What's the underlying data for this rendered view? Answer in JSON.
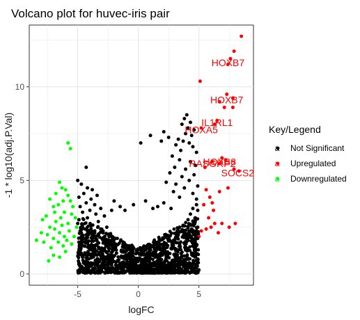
{
  "chart_data": {
    "type": "scatter",
    "title": "Volcano plot for huvec-iris pair",
    "xlabel": "logFC",
    "ylabel": "-1 * log10(adj.P.Val)",
    "xlim": [
      -9,
      9.5
    ],
    "ylim": [
      -0.6,
      13.3
    ],
    "x_ticks": [
      -5,
      0,
      5
    ],
    "y_ticks": [
      0,
      5,
      10
    ],
    "grid": true,
    "legend": {
      "title": "Key/Legend",
      "position": "right",
      "glyph": "a",
      "entries": [
        {
          "label": "Not Significant",
          "color": "#000000"
        },
        {
          "label": "Upregulated",
          "color": "#ff0000"
        },
        {
          "label": "Downregulated",
          "color": "#00ff00"
        }
      ]
    },
    "series": [
      {
        "name": "Upregulated",
        "color": "#ff0000",
        "points": [
          [
            8.5,
            12.7
          ],
          [
            7.9,
            11.9
          ],
          [
            7.6,
            11.5
          ],
          [
            7.4,
            11.2
          ],
          [
            5.1,
            10.3
          ],
          [
            7.3,
            9.6
          ],
          [
            7.8,
            9.4
          ],
          [
            6.7,
            9.2
          ],
          [
            7.1,
            8.9
          ],
          [
            7.8,
            8.9
          ],
          [
            6.5,
            8.2
          ],
          [
            6.3,
            8.0
          ],
          [
            5.2,
            7.8
          ],
          [
            6.9,
            6.2
          ],
          [
            7.2,
            6.1
          ],
          [
            6.1,
            6.0
          ],
          [
            6.7,
            5.9
          ],
          [
            5.5,
            5.7
          ],
          [
            7.9,
            5.6
          ],
          [
            8.3,
            5.5
          ],
          [
            5.6,
            4.5
          ],
          [
            7.4,
            4.6
          ],
          [
            6.7,
            4.4
          ],
          [
            5.9,
            4.1
          ],
          [
            6.1,
            3.8
          ],
          [
            5.4,
            3.7
          ],
          [
            6.2,
            3.4
          ],
          [
            5.8,
            3.0
          ],
          [
            6.9,
            2.7
          ],
          [
            6.3,
            2.7
          ],
          [
            6.0,
            2.5
          ],
          [
            5.6,
            2.4
          ],
          [
            8.0,
            2.7
          ],
          [
            7.5,
            2.5
          ],
          [
            5.2,
            2.3
          ],
          [
            6.6,
            2.2
          ],
          [
            5.0,
            2.0
          ]
        ]
      },
      {
        "name": "Downregulated",
        "color": "#00ff00",
        "points": [
          [
            -5.8,
            7.0
          ],
          [
            -5.6,
            6.7
          ],
          [
            -6.5,
            4.9
          ],
          [
            -6.3,
            4.6
          ],
          [
            -6.0,
            4.5
          ],
          [
            -6.8,
            4.3
          ],
          [
            -5.8,
            4.2
          ],
          [
            -7.3,
            4.0
          ],
          [
            -6.2,
            3.9
          ],
          [
            -5.6,
            3.9
          ],
          [
            -6.6,
            3.7
          ],
          [
            -7.0,
            3.6
          ],
          [
            -5.4,
            3.6
          ],
          [
            -6.9,
            3.3
          ],
          [
            -6.1,
            3.3
          ],
          [
            -5.5,
            3.2
          ],
          [
            -7.6,
            3.1
          ],
          [
            -6.4,
            3.0
          ],
          [
            -5.2,
            3.0
          ],
          [
            -7.9,
            2.9
          ],
          [
            -6.8,
            2.8
          ],
          [
            -5.8,
            2.7
          ],
          [
            -6.3,
            2.6
          ],
          [
            -7.3,
            2.5
          ],
          [
            -5.1,
            2.5
          ],
          [
            -6.9,
            2.4
          ],
          [
            -5.7,
            2.3
          ],
          [
            -8.0,
            2.2
          ],
          [
            -6.5,
            2.2
          ],
          [
            -7.5,
            2.1
          ],
          [
            -6.1,
            2.0
          ],
          [
            -5.3,
            2.0
          ],
          [
            -7.0,
            1.9
          ],
          [
            -5.9,
            1.8
          ],
          [
            -8.4,
            1.8
          ],
          [
            -6.6,
            1.7
          ],
          [
            -7.8,
            1.7
          ],
          [
            -5.5,
            1.6
          ],
          [
            -6.2,
            1.5
          ],
          [
            -7.2,
            1.4
          ],
          [
            -6.0,
            1.2
          ],
          [
            -7.0,
            1.0
          ],
          [
            -6.5,
            0.9
          ],
          [
            -7.4,
            0.7
          ]
        ]
      },
      {
        "name": "Not Significant",
        "color": "#000000",
        "points": [
          [
            4.0,
            8.5
          ],
          [
            3.8,
            8.3
          ],
          [
            4.3,
            8.1
          ],
          [
            3.6,
            8.0
          ],
          [
            4.1,
            7.8
          ],
          [
            4.6,
            7.7
          ],
          [
            3.9,
            7.5
          ],
          [
            4.4,
            7.4
          ],
          [
            3.3,
            7.2
          ],
          [
            3.7,
            7.1
          ],
          [
            4.2,
            7.0
          ],
          [
            2.1,
            7.6
          ],
          [
            2.5,
            7.3
          ],
          [
            1.9,
            7.1
          ],
          [
            3.1,
            6.9
          ],
          [
            4.5,
            6.8
          ],
          [
            3.5,
            6.6
          ],
          [
            4.8,
            6.5
          ],
          [
            2.8,
            6.3
          ],
          [
            3.4,
            6.1
          ],
          [
            4.3,
            6.0
          ],
          [
            4.7,
            5.8
          ],
          [
            3.0,
            5.7
          ],
          [
            3.9,
            5.6
          ],
          [
            2.6,
            5.4
          ],
          [
            4.6,
            5.3
          ],
          [
            3.6,
            5.2
          ],
          [
            4.2,
            5.0
          ],
          [
            2.3,
            4.9
          ],
          [
            3.1,
            4.8
          ],
          [
            4.9,
            4.7
          ],
          [
            3.8,
            4.6
          ],
          [
            2.9,
            4.4
          ],
          [
            4.5,
            4.3
          ],
          [
            3.4,
            4.1
          ],
          [
            4.8,
            4.0
          ],
          [
            1.0,
            7.4
          ],
          [
            0.2,
            7.0
          ],
          [
            -4.3,
            5.7
          ],
          [
            -5.0,
            5.0
          ],
          [
            -4.7,
            4.8
          ],
          [
            -4.2,
            4.6
          ],
          [
            -3.8,
            4.5
          ],
          [
            -4.5,
            4.3
          ],
          [
            -3.4,
            4.2
          ],
          [
            -4.9,
            4.1
          ],
          [
            -3.9,
            4.0
          ],
          [
            -4.3,
            3.8
          ],
          [
            -3.6,
            3.7
          ],
          [
            -4.8,
            3.6
          ],
          [
            -3.1,
            3.5
          ],
          [
            -4.0,
            3.4
          ],
          [
            -4.6,
            3.3
          ],
          [
            -3.5,
            3.2
          ],
          [
            -2.8,
            3.1
          ],
          [
            -4.2,
            3.0
          ],
          [
            -4.9,
            2.9
          ],
          [
            -3.3,
            2.8
          ],
          [
            -5.0,
            2.7
          ],
          [
            -3.9,
            2.6
          ],
          [
            -4.6,
            2.5
          ],
          [
            -2.6,
            2.5
          ],
          [
            -3.1,
            2.4
          ],
          [
            -4.8,
            2.3
          ],
          [
            -3.6,
            2.2
          ],
          [
            -4.1,
            2.1
          ],
          [
            -2.4,
            2.0
          ],
          [
            -4.7,
            2.0
          ],
          [
            -4.9,
            1.7
          ],
          [
            -4.5,
            1.5
          ],
          [
            -4.8,
            1.3
          ],
          [
            -4.3,
            1.1
          ],
          [
            -4.6,
            0.9
          ],
          [
            -4.9,
            0.6
          ],
          [
            -4.0,
            0.5
          ],
          [
            -3.7,
            0.3
          ],
          [
            4.8,
            3.7
          ],
          [
            4.5,
            3.5
          ],
          [
            4.9,
            3.4
          ],
          [
            4.3,
            3.2
          ],
          [
            4.7,
            3.0
          ],
          [
            4.1,
            2.9
          ],
          [
            4.6,
            2.7
          ],
          [
            4.9,
            2.5
          ],
          [
            3.7,
            2.6
          ],
          [
            4.4,
            2.4
          ],
          [
            4.8,
            2.2
          ],
          [
            4.2,
            2.1
          ],
          [
            4.9,
            1.9
          ],
          [
            4.6,
            1.6
          ],
          [
            4.8,
            1.3
          ],
          [
            4.5,
            1.1
          ],
          [
            4.9,
            0.8
          ],
          [
            4.2,
            0.6
          ],
          [
            3.9,
            0.4
          ],
          [
            4.7,
            0.5
          ],
          [
            2.1,
            3.8
          ],
          [
            1.6,
            3.6
          ],
          [
            2.7,
            3.5
          ],
          [
            -2.0,
            3.9
          ],
          [
            -1.5,
            3.6
          ],
          [
            -2.2,
            3.4
          ],
          [
            0.6,
            3.9
          ],
          [
            -0.4,
            3.7
          ],
          [
            1.2,
            3.5
          ],
          [
            -1.1,
            3.4
          ]
        ]
      }
    ],
    "annotations": [
      {
        "text": "HOXB7",
        "x": 7.4,
        "y": 11.3
      },
      {
        "text": "HOXB7",
        "x": 7.3,
        "y": 9.3
      },
      {
        "text": "IL1RL1",
        "x": 6.5,
        "y": 8.1
      },
      {
        "text": "HOXA5",
        "x": 5.2,
        "y": 7.7
      },
      {
        "text": "HOXB8",
        "x": 6.7,
        "y": 6.0
      },
      {
        "text": "RASGRP2",
        "x": 6.1,
        "y": 5.9
      },
      {
        "text": "SOCS2",
        "x": 8.2,
        "y": 5.4
      }
    ],
    "dense_cloud": {
      "color": "#000000",
      "x_center": 0,
      "x_half_width": 5,
      "y_base": 0.05,
      "note_shape": "v-shaped dense cloud of non-significant genes"
    }
  }
}
